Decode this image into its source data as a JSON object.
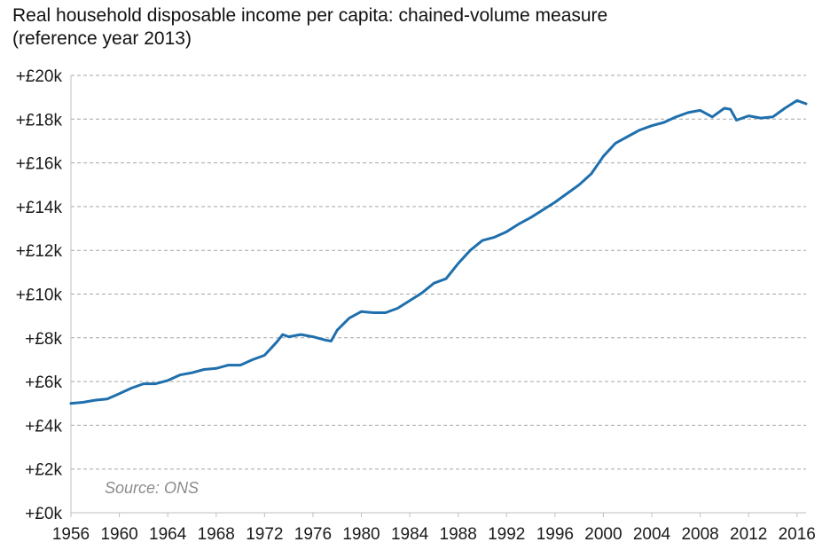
{
  "chart_data": {
    "type": "line",
    "title": "Real household disposable income per capita: chained-volume measure",
    "subtitle": "(reference year 2013)",
    "xlabel": "",
    "ylabel": "",
    "source": "Source: ONS",
    "xlim": [
      1956,
      2016.75
    ],
    "ylim": [
      0,
      20000
    ],
    "x_ticks": [
      1956,
      1960,
      1964,
      1968,
      1972,
      1976,
      1980,
      1984,
      1988,
      1992,
      1996,
      2000,
      2004,
      2008,
      2012,
      2016
    ],
    "x_tick_labels": [
      "1956",
      "1960",
      "1964",
      "1968",
      "1972",
      "1976",
      "1980",
      "1984",
      "1988",
      "1992",
      "1996",
      "2000",
      "2004",
      "2008",
      "2012",
      "2016"
    ],
    "y_ticks": [
      0,
      2000,
      4000,
      6000,
      8000,
      10000,
      12000,
      14000,
      16000,
      18000,
      20000
    ],
    "y_tick_labels": [
      "+£0k",
      "+£2k",
      "+£4k",
      "+£6k",
      "+£8k",
      "+£10k",
      "+£12k",
      "+£14k",
      "+£16k",
      "+£18k",
      "+£20k"
    ],
    "grid": "horizontal dashed",
    "colors": {
      "line": "#1f6fad",
      "grid": "#a6a6a6",
      "axis": "#bfbfbf",
      "source": "#8c8c8c"
    },
    "series": [
      {
        "x": [
          1956,
          1957,
          1958,
          1959,
          1960,
          1961,
          1962,
          1963,
          1964,
          1965,
          1966,
          1967,
          1968,
          1969,
          1970,
          1971,
          1972,
          1973,
          1973.5,
          1974,
          1975,
          1976,
          1977,
          1977.5,
          1978,
          1979,
          1980,
          1981,
          1982,
          1983,
          1984,
          1985,
          1986,
          1987,
          1988,
          1989,
          1990,
          1991,
          1992,
          1993,
          1994,
          1995,
          1996,
          1997,
          1998,
          1999,
          2000,
          2001,
          2002,
          2003,
          2004,
          2005,
          2006,
          2007,
          2008,
          2009,
          2010,
          2010.5,
          2011,
          2012,
          2013,
          2014,
          2015,
          2016,
          2016.75
        ],
        "y": [
          5000,
          5050,
          5150,
          5200,
          5450,
          5700,
          5900,
          5900,
          6050,
          6300,
          6400,
          6550,
          6600,
          6750,
          6750,
          7000,
          7200,
          7800,
          8150,
          8050,
          8150,
          8050,
          7900,
          7850,
          8350,
          8900,
          9200,
          9150,
          9150,
          9350,
          9700,
          10050,
          10500,
          10700,
          11400,
          12000,
          12450,
          12600,
          12850,
          13200,
          13500,
          13850,
          14200,
          14600,
          15000,
          15500,
          16300,
          16900,
          17200,
          17500,
          17700,
          17850,
          18100,
          18300,
          18400,
          18100,
          18500,
          18450,
          17950,
          18150,
          18050,
          18100,
          18500,
          18850,
          18700
        ]
      }
    ]
  }
}
